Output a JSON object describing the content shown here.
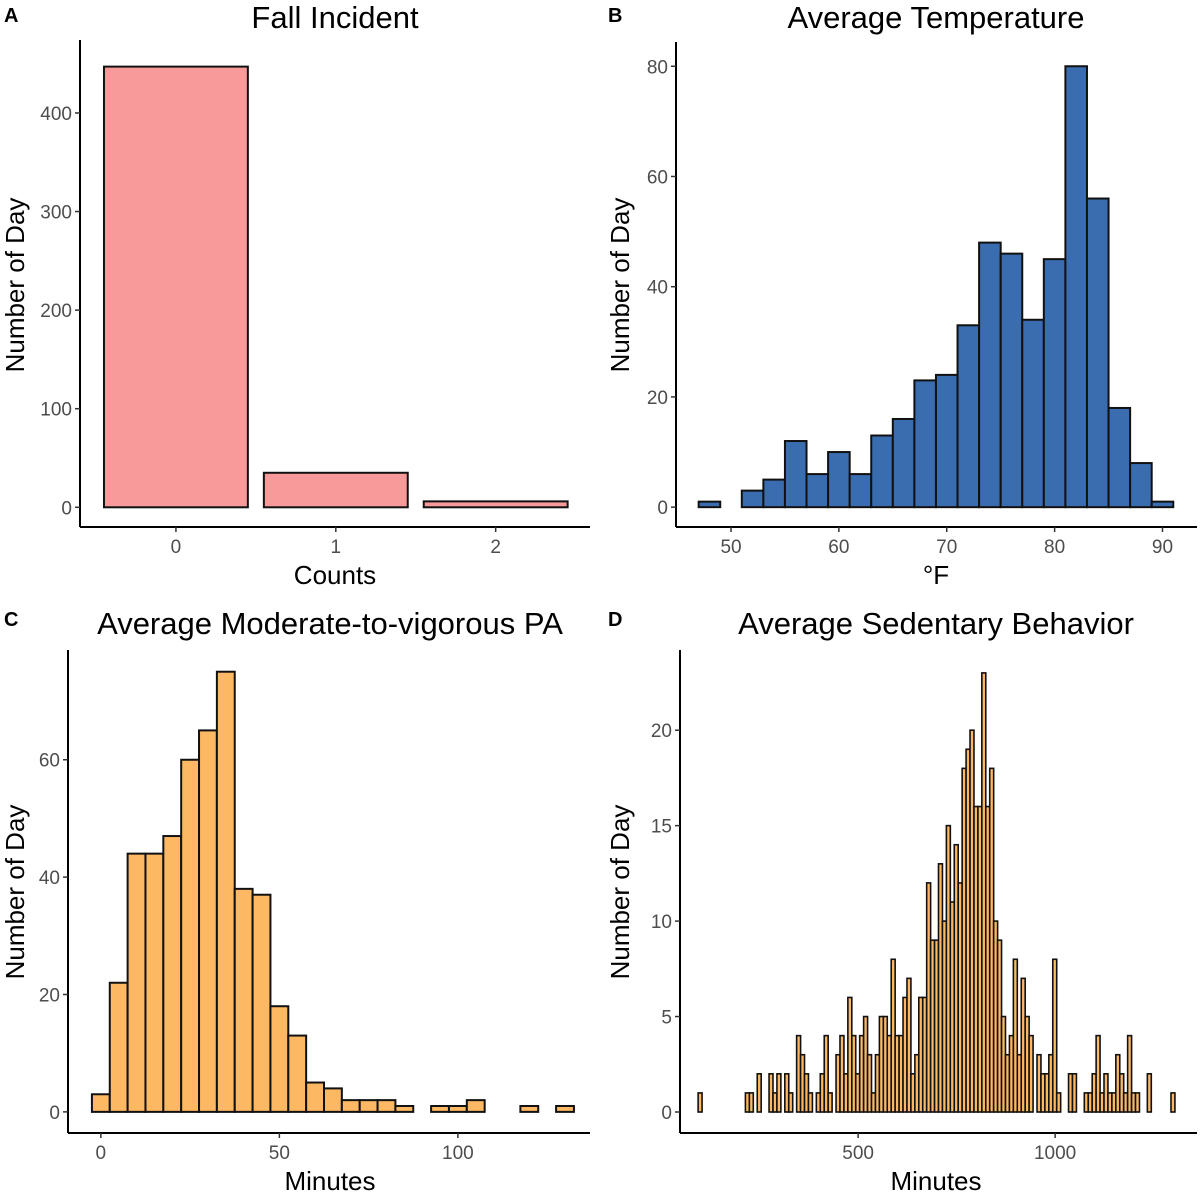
{
  "chart_data": [
    {
      "panel": "A",
      "type": "bar",
      "title": "Fall Incident",
      "xlabel": "Counts",
      "ylabel": "Number of Day",
      "categories": [
        "0",
        "1",
        "2"
      ],
      "values": [
        447,
        35,
        6
      ],
      "xticks": [
        0,
        1,
        2
      ],
      "yticks": [
        0,
        100,
        200,
        300,
        400
      ],
      "xlim": [
        -0.6,
        2.59
      ],
      "ylim": [
        -20,
        474
      ],
      "fill": "#F8999A",
      "grid": false
    },
    {
      "panel": "B",
      "type": "bar",
      "subtype": "histogram",
      "title": "Average Temperature",
      "xlabel": "°F",
      "ylabel": "Number of Day",
      "bin_start": 47,
      "bin_width": 2,
      "values": [
        1,
        0,
        3,
        5,
        12,
        6,
        10,
        6,
        13,
        16,
        23,
        24,
        33,
        48,
        46,
        34,
        45,
        80,
        56,
        18,
        8,
        1
      ],
      "xticks": [
        50,
        60,
        70,
        80,
        90
      ],
      "yticks": [
        0,
        20,
        40,
        60,
        80
      ],
      "xlim": [
        44.9,
        93.2
      ],
      "ylim": [
        -3.6,
        84.4
      ],
      "fill": "#3A6DB0",
      "grid": false
    },
    {
      "panel": "C",
      "type": "bar",
      "subtype": "histogram",
      "title": "Average Moderate-to-vigorous PA",
      "xlabel": "Minutes",
      "ylabel": "Number of Day",
      "bin_start": -2.5,
      "bin_width": 5,
      "values": [
        3,
        22,
        44,
        44,
        47,
        60,
        65,
        75,
        38,
        37,
        18,
        13,
        5,
        4,
        2,
        2,
        2,
        1,
        0,
        1,
        1,
        2,
        0,
        0,
        1,
        0,
        1
      ],
      "xticks": [
        0,
        50,
        100
      ],
      "yticks": [
        0,
        20,
        40,
        60
      ],
      "xlim": [
        -9.2,
        137
      ],
      "ylim": [
        -3.6,
        78.7
      ],
      "fill": "#FDB863",
      "grid": false
    },
    {
      "panel": "D",
      "type": "bar",
      "subtype": "histogram",
      "title": "Average Sedentary Behavior",
      "xlabel": "Minutes",
      "ylabel": "Number of Day",
      "bin_start": 94,
      "bin_width": 10,
      "values": [
        1,
        0,
        0,
        0,
        0,
        0,
        0,
        0,
        0,
        0,
        0,
        0,
        1,
        1,
        0,
        2,
        0,
        0,
        2,
        1,
        2,
        0,
        2,
        1,
        0,
        4,
        3,
        2,
        1,
        0,
        1,
        2,
        4,
        1,
        0,
        3,
        4,
        2,
        6,
        4,
        2,
        4,
        5,
        3,
        1,
        3,
        5,
        5,
        4,
        8,
        4,
        4,
        6,
        7,
        2,
        3,
        6,
        6,
        12,
        9,
        9,
        13,
        10,
        15,
        11,
        14,
        12,
        18,
        19,
        20,
        16,
        16,
        23,
        16,
        18,
        10,
        9,
        5,
        3,
        4,
        8,
        3,
        7,
        5,
        4,
        0,
        3,
        2,
        2,
        3,
        8,
        1,
        0,
        0,
        2,
        2,
        0,
        0,
        1,
        1,
        2,
        4,
        1,
        2,
        1,
        1,
        3,
        2,
        1,
        4,
        1,
        1,
        0,
        0,
        2,
        0,
        0,
        0,
        0,
        0,
        1
      ],
      "xticks": [
        500,
        1000
      ],
      "yticks": [
        0,
        5,
        10,
        15,
        20
      ],
      "xlim": [
        48,
        1360
      ],
      "ylim": [
        -1.1,
        24.2
      ],
      "fill": "#FDB863",
      "grid": false
    }
  ]
}
